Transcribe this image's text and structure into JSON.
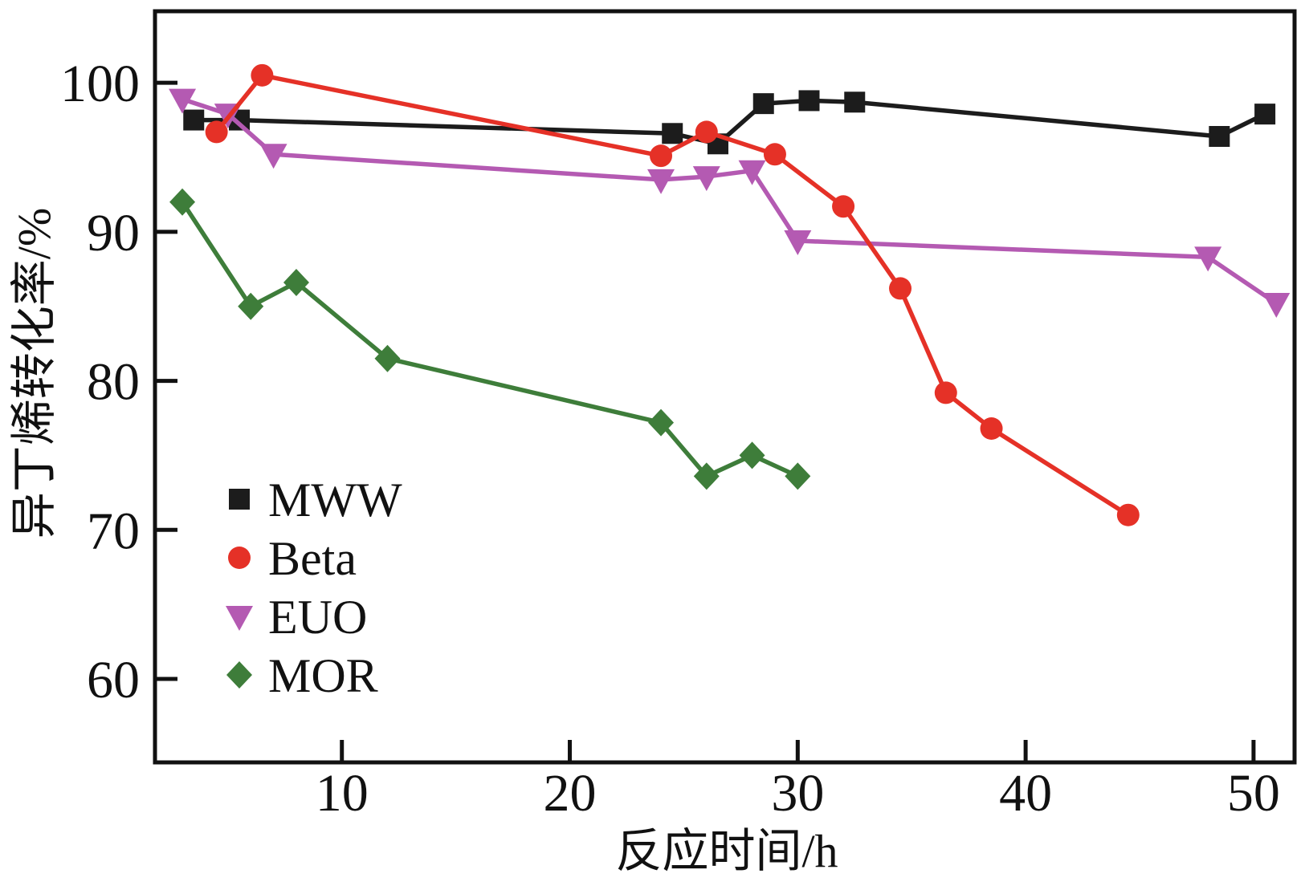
{
  "chart_data": {
    "type": "line",
    "title": "",
    "xlabel": "反应时间/h",
    "ylabel": "异丁烯转化率/%",
    "xlim": [
      1.8,
      51.8
    ],
    "ylim": [
      54.4,
      104.8
    ],
    "x_ticks": [
      10,
      20,
      30,
      40,
      50
    ],
    "y_ticks": [
      60,
      70,
      80,
      90,
      100
    ],
    "grid": false,
    "legend_position": "inside-lower-left",
    "series": [
      {
        "name": "MWW",
        "marker": "square",
        "color": "#1c1c1c",
        "points": [
          [
            3.5,
            97.5
          ],
          [
            5.5,
            97.5
          ],
          [
            24.5,
            96.6
          ],
          [
            26.5,
            95.9
          ],
          [
            28.5,
            98.6
          ],
          [
            30.5,
            98.8
          ],
          [
            32.5,
            98.7
          ],
          [
            48.5,
            96.4
          ],
          [
            50.5,
            97.9
          ]
        ]
      },
      {
        "name": "Beta",
        "marker": "circle",
        "color": "#e53127",
        "points": [
          [
            4.5,
            96.7
          ],
          [
            6.5,
            100.5
          ],
          [
            24,
            95.1
          ],
          [
            26,
            96.7
          ],
          [
            29,
            95.2
          ],
          [
            32,
            91.7
          ],
          [
            34.5,
            86.2
          ],
          [
            36.5,
            79.2
          ],
          [
            38.5,
            76.8
          ],
          [
            44.5,
            71.0
          ]
        ]
      },
      {
        "name": "EUO",
        "marker": "triangle-down",
        "color": "#b45ab2",
        "points": [
          [
            3,
            98.9
          ],
          [
            5,
            97.9
          ],
          [
            7,
            95.2
          ],
          [
            24,
            93.5
          ],
          [
            26,
            93.7
          ],
          [
            28,
            94.1
          ],
          [
            30,
            89.4
          ],
          [
            48,
            88.3
          ],
          [
            51,
            85.2
          ]
        ]
      },
      {
        "name": "MOR",
        "marker": "diamond",
        "color": "#3e7d3a",
        "points": [
          [
            3,
            92.0
          ],
          [
            6,
            85.0
          ],
          [
            8,
            86.6
          ],
          [
            12,
            81.5
          ],
          [
            24,
            77.2
          ],
          [
            26,
            73.6
          ],
          [
            28,
            75.0
          ],
          [
            30,
            73.6
          ]
        ]
      }
    ]
  }
}
